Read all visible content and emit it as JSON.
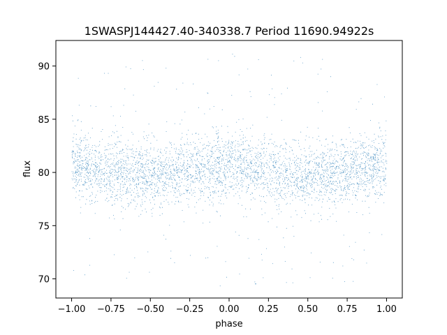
{
  "chart_data": {
    "type": "scatter",
    "title": "1SWASPJ144427.40-340338.7 Period 11690.94922s",
    "xlabel": "phase",
    "ylabel": "flux",
    "xlim": [
      -1.1,
      1.1
    ],
    "ylim": [
      68.2,
      92.4
    ],
    "xticks": [
      -1.0,
      -0.75,
      -0.5,
      -0.25,
      0.0,
      0.25,
      0.5,
      0.75,
      1.0
    ],
    "xtick_labels": [
      "−1.00",
      "−0.75",
      "−0.50",
      "−0.25",
      "0.00",
      "0.25",
      "0.50",
      "0.75",
      "1.00"
    ],
    "yticks": [
      70,
      75,
      80,
      85,
      90
    ],
    "ytick_labels": [
      "70",
      "75",
      "80",
      "85",
      "90"
    ],
    "grid": false,
    "marker_color": "#1f77b4",
    "series": [
      {
        "x_range": [
          -1.0,
          1.0
        ],
        "y_range": [
          69.3,
          91.2
        ],
        "trend_x": [
          -1.0,
          -0.75,
          -0.5,
          -0.25,
          0.0,
          0.25,
          0.5,
          0.75,
          1.0
        ],
        "trend_y": [
          80.7,
          80.1,
          79.6,
          80.1,
          80.8,
          80.1,
          79.5,
          80.1,
          80.7
        ],
        "spread_sd": 1.5
      }
    ]
  }
}
